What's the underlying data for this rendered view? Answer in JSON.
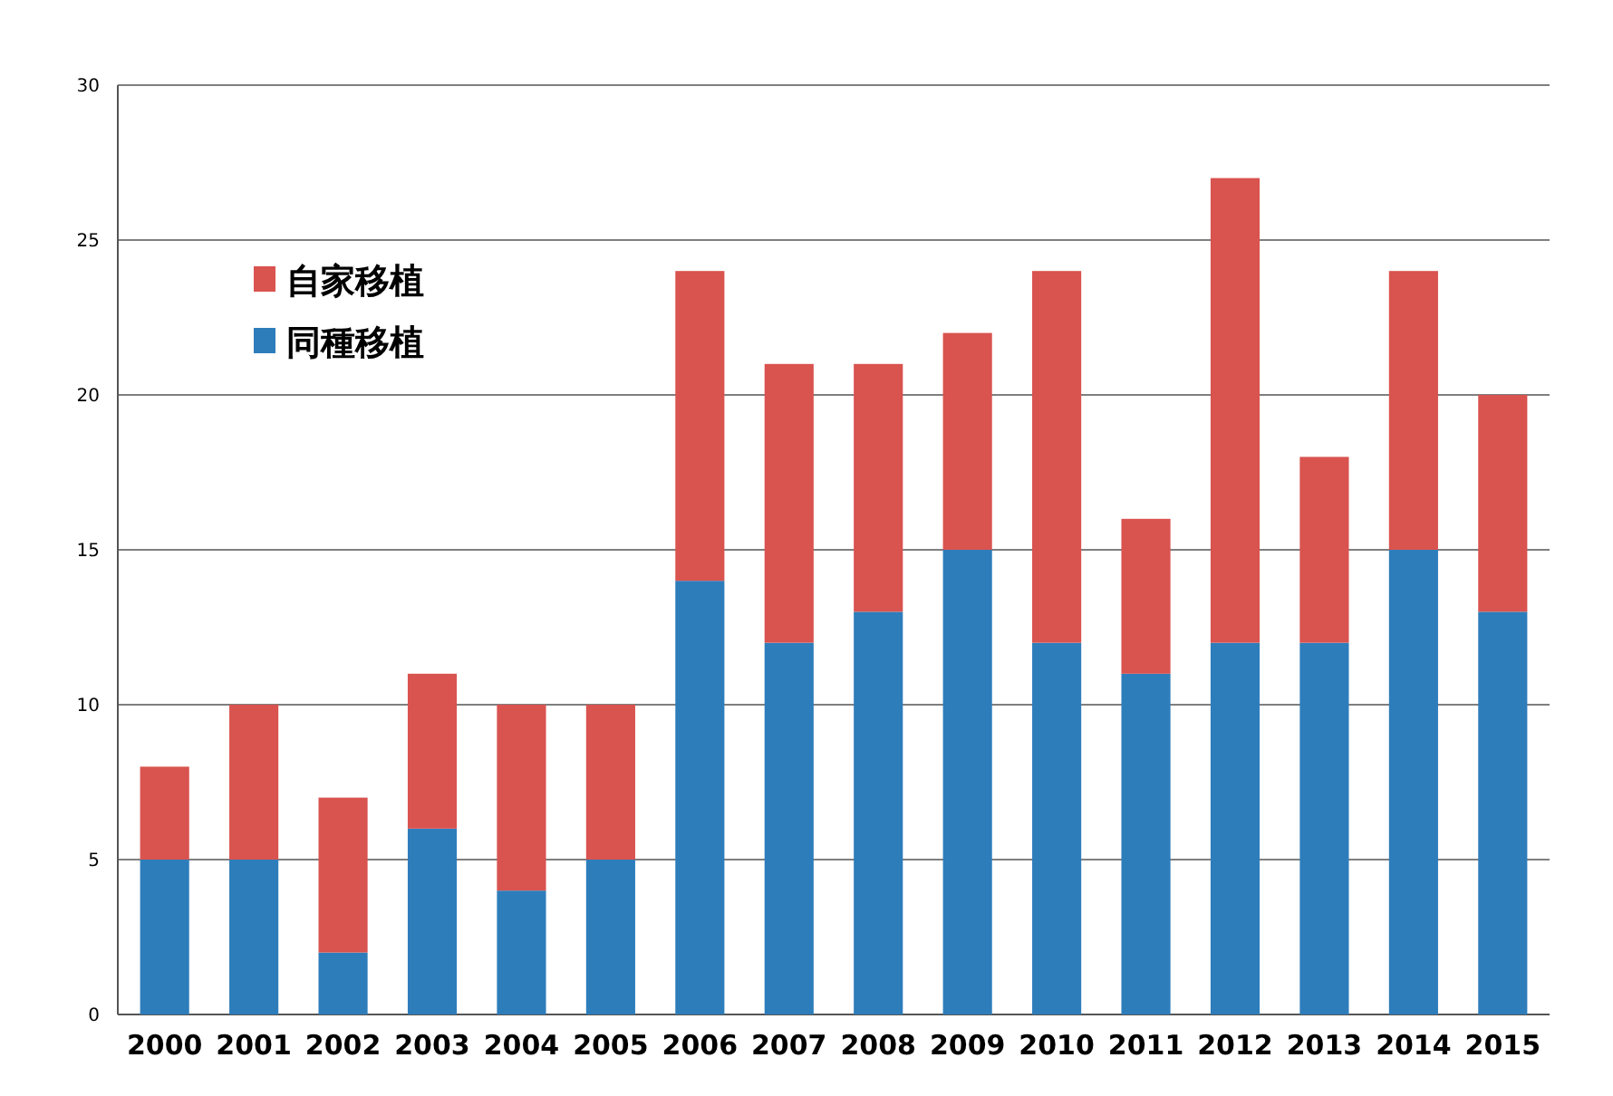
{
  "chart_data": {
    "type": "bar",
    "stacked": true,
    "categories": [
      "2000",
      "2001",
      "2002",
      "2003",
      "2004",
      "2005",
      "2006",
      "2007",
      "2008",
      "2009",
      "2010",
      "2011",
      "2012",
      "2013",
      "2014",
      "2015"
    ],
    "series": [
      {
        "name": "同種移植",
        "color": "#2e7dbb",
        "values": [
          5,
          5,
          2,
          6,
          4,
          5,
          14,
          12,
          13,
          15,
          12,
          11,
          12,
          12,
          15,
          13
        ]
      },
      {
        "name": "自家移植",
        "color": "#d9534f",
        "values": [
          3,
          5,
          5,
          5,
          6,
          5,
          10,
          9,
          8,
          7,
          12,
          5,
          15,
          6,
          9,
          7
        ]
      }
    ],
    "ylim": [
      0,
      30
    ],
    "yticks": [
      0,
      5,
      10,
      15,
      20,
      25,
      30
    ],
    "grid": "y",
    "legend": "top left"
  }
}
